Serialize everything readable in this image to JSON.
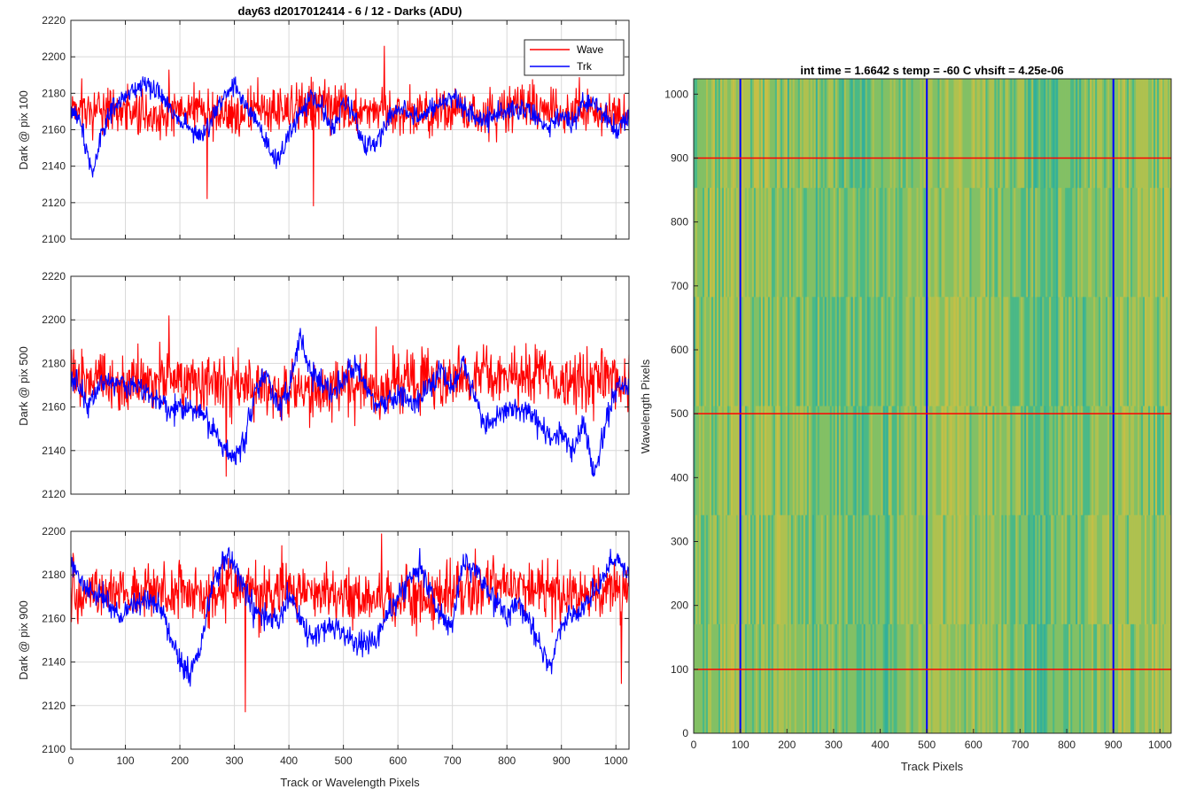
{
  "figure": {
    "background": "#ffffff"
  },
  "colors": {
    "wave": "#ff0000",
    "trk": "#0000ff",
    "grid": "#d9d9d9",
    "axis": "#262626"
  },
  "chart_data": [
    {
      "type": "line",
      "title": "day63 d2017012414 - 6 / 12 - Darks (ADU)",
      "xlabel": "",
      "ylabel": "Dark @ pix 100",
      "xlim": [
        0,
        1024
      ],
      "ylim": [
        2100,
        2220
      ],
      "xticks": [
        0,
        100,
        200,
        300,
        400,
        500,
        600,
        700,
        800,
        900,
        1000
      ],
      "yticks": [
        2100,
        2120,
        2140,
        2160,
        2180,
        2200,
        2220
      ],
      "show_xtick_labels": false,
      "grid": true,
      "legend": {
        "location": "top-right",
        "entries": [
          "Wave",
          "Trk"
        ]
      },
      "series": [
        {
          "name": "Wave",
          "color": "#ff0000",
          "mean": 2171,
          "noise": 9,
          "drift": 3,
          "spikes": [
            [
              575,
              2206
            ],
            [
              445,
              2118
            ],
            [
              250,
              2122
            ],
            [
              180,
              2193
            ]
          ]
        },
        {
          "name": "Trk",
          "color": "#0000ff",
          "knots": [
            [
              0,
              2172
            ],
            [
              20,
              2162
            ],
            [
              40,
              2135
            ],
            [
              55,
              2158
            ],
            [
              80,
              2172
            ],
            [
              120,
              2183
            ],
            [
              140,
              2186
            ],
            [
              160,
              2180
            ],
            [
              200,
              2166
            ],
            [
              240,
              2155
            ],
            [
              280,
              2178
            ],
            [
              300,
              2186
            ],
            [
              320,
              2172
            ],
            [
              340,
              2165
            ],
            [
              360,
              2150
            ],
            [
              380,
              2142
            ],
            [
              400,
              2158
            ],
            [
              440,
              2178
            ],
            [
              460,
              2172
            ],
            [
              480,
              2160
            ],
            [
              500,
              2175
            ],
            [
              520,
              2168
            ],
            [
              540,
              2150
            ],
            [
              560,
              2152
            ],
            [
              580,
              2165
            ],
            [
              600,
              2172
            ],
            [
              640,
              2167
            ],
            [
              660,
              2170
            ],
            [
              700,
              2178
            ],
            [
              720,
              2172
            ],
            [
              760,
              2165
            ],
            [
              800,
              2172
            ],
            [
              840,
              2170
            ],
            [
              880,
              2160
            ],
            [
              900,
              2168
            ],
            [
              920,
              2163
            ],
            [
              940,
              2175
            ],
            [
              960,
              2175
            ],
            [
              1000,
              2160
            ],
            [
              1024,
              2168
            ]
          ],
          "noise": 5
        }
      ]
    },
    {
      "type": "line",
      "title": "",
      "xlabel": "",
      "ylabel": "Dark @ pix 500",
      "xlim": [
        0,
        1024
      ],
      "ylim": [
        2120,
        2220
      ],
      "xticks": [
        0,
        100,
        200,
        300,
        400,
        500,
        600,
        700,
        800,
        900,
        1000
      ],
      "yticks": [
        2120,
        2140,
        2160,
        2180,
        2200,
        2220
      ],
      "show_xtick_labels": false,
      "grid": true,
      "series": [
        {
          "name": "Wave",
          "color": "#ff0000",
          "mean": 2171,
          "noise": 9,
          "drift": 3,
          "spikes": [
            [
              180,
              2202
            ],
            [
              285,
              2128
            ],
            [
              560,
              2197
            ]
          ]
        },
        {
          "name": "Trk",
          "color": "#0000ff",
          "knots": [
            [
              0,
              2175
            ],
            [
              30,
              2162
            ],
            [
              60,
              2172
            ],
            [
              100,
              2170
            ],
            [
              140,
              2168
            ],
            [
              180,
              2158
            ],
            [
              200,
              2160
            ],
            [
              240,
              2158
            ],
            [
              280,
              2142
            ],
            [
              300,
              2135
            ],
            [
              320,
              2148
            ],
            [
              340,
              2168
            ],
            [
              360,
              2175
            ],
            [
              380,
              2160
            ],
            [
              400,
              2168
            ],
            [
              420,
              2192
            ],
            [
              440,
              2175
            ],
            [
              480,
              2168
            ],
            [
              520,
              2178
            ],
            [
              560,
              2160
            ],
            [
              600,
              2165
            ],
            [
              640,
              2162
            ],
            [
              680,
              2178
            ],
            [
              700,
              2168
            ],
            [
              720,
              2180
            ],
            [
              760,
              2152
            ],
            [
              800,
              2160
            ],
            [
              840,
              2158
            ],
            [
              880,
              2145
            ],
            [
              900,
              2150
            ],
            [
              920,
              2138
            ],
            [
              940,
              2155
            ],
            [
              960,
              2128
            ],
            [
              980,
              2150
            ],
            [
              1000,
              2170
            ],
            [
              1024,
              2170
            ]
          ],
          "noise": 5
        }
      ]
    },
    {
      "type": "line",
      "title": "",
      "xlabel": "Track or Wavelength Pixels",
      "ylabel": "Dark @ pix 900",
      "xlim": [
        0,
        1024
      ],
      "ylim": [
        2100,
        2200
      ],
      "xticks": [
        0,
        100,
        200,
        300,
        400,
        500,
        600,
        700,
        800,
        900,
        1000
      ],
      "yticks": [
        2100,
        2120,
        2140,
        2160,
        2180,
        2200
      ],
      "show_xtick_labels": true,
      "grid": true,
      "series": [
        {
          "name": "Wave",
          "color": "#ff0000",
          "mean": 2171,
          "noise": 9,
          "drift": 3,
          "spikes": [
            [
              320,
              2117
            ],
            [
              570,
              2199
            ],
            [
              1010,
              2130
            ]
          ]
        },
        {
          "name": "Trk",
          "color": "#0000ff",
          "knots": [
            [
              0,
              2185
            ],
            [
              30,
              2172
            ],
            [
              60,
              2170
            ],
            [
              90,
              2160
            ],
            [
              120,
              2168
            ],
            [
              160,
              2168
            ],
            [
              200,
              2140
            ],
            [
              220,
              2135
            ],
            [
              240,
              2150
            ],
            [
              260,
              2175
            ],
            [
              290,
              2190
            ],
            [
              320,
              2172
            ],
            [
              340,
              2162
            ],
            [
              380,
              2158
            ],
            [
              400,
              2170
            ],
            [
              440,
              2150
            ],
            [
              480,
              2158
            ],
            [
              520,
              2148
            ],
            [
              560,
              2150
            ],
            [
              600,
              2170
            ],
            [
              640,
              2185
            ],
            [
              680,
              2160
            ],
            [
              700,
              2155
            ],
            [
              720,
              2188
            ],
            [
              760,
              2175
            ],
            [
              800,
              2160
            ],
            [
              820,
              2168
            ],
            [
              860,
              2150
            ],
            [
              880,
              2138
            ],
            [
              900,
              2158
            ],
            [
              940,
              2165
            ],
            [
              980,
              2180
            ],
            [
              1000,
              2188
            ],
            [
              1024,
              2180
            ]
          ],
          "noise": 5
        }
      ]
    },
    {
      "type": "heatmap",
      "title": "int time = 1.6642 s    temp = -60 C    vhsift = 4.25e-06",
      "xlabel": "Track Pixels",
      "ylabel": "Wavelength Pixels",
      "xlim": [
        0,
        1024
      ],
      "ylim": [
        0,
        1024
      ],
      "xticks": [
        0,
        100,
        200,
        300,
        400,
        500,
        600,
        700,
        800,
        900,
        1000
      ],
      "yticks": [
        0,
        100,
        200,
        300,
        400,
        500,
        600,
        700,
        800,
        900,
        1000
      ],
      "colormap": [
        "#2aaea0",
        "#45b88a",
        "#86c163",
        "#b8c24a",
        "#d4c040"
      ],
      "value_range": [
        2120,
        2220
      ],
      "markers": {
        "vertical_lines": {
          "x": [
            100,
            500,
            900
          ],
          "color": "#0000ff"
        },
        "horizontal_lines": {
          "y": [
            100,
            500,
            900
          ],
          "color": "#ff0000"
        }
      }
    }
  ]
}
